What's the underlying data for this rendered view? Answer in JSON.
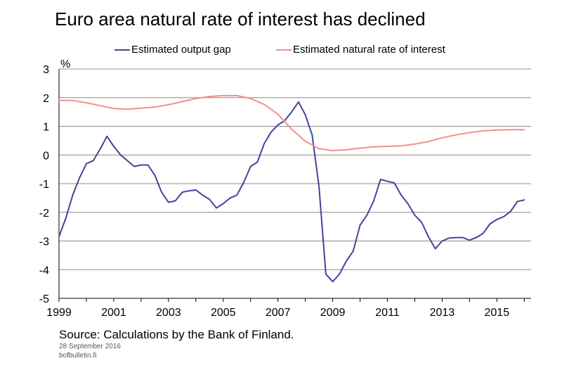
{
  "title": "Euro area natural rate of interest has declined",
  "source": "Source: Calculations by the Bank of Finland.",
  "date": "28 September 2016",
  "site": "bofbulletin.fi",
  "chart_data": {
    "type": "line",
    "ylabel": "%",
    "ylim": [
      -5,
      3
    ],
    "xlim": [
      1999,
      2016.25
    ],
    "yticks": [
      -5,
      -4,
      -3,
      -2,
      -1,
      0,
      1,
      2,
      3
    ],
    "xticks": [
      1999,
      2001,
      2003,
      2005,
      2007,
      2009,
      2011,
      2013,
      2015
    ],
    "grid": true,
    "legend_position": "top",
    "series": [
      {
        "name": "Estimated output gap",
        "color": "#3f4699",
        "points": [
          [
            1999.0,
            -2.85
          ],
          [
            1999.25,
            -2.2
          ],
          [
            1999.5,
            -1.4
          ],
          [
            1999.75,
            -0.8
          ],
          [
            2000.0,
            -0.3
          ],
          [
            2000.25,
            -0.2
          ],
          [
            2000.5,
            0.2
          ],
          [
            2000.75,
            0.65
          ],
          [
            2001.0,
            0.3
          ],
          [
            2001.25,
            0.0
          ],
          [
            2001.5,
            -0.2
          ],
          [
            2001.75,
            -0.4
          ],
          [
            2002.0,
            -0.35
          ],
          [
            2002.25,
            -0.35
          ],
          [
            2002.5,
            -0.7
          ],
          [
            2002.75,
            -1.3
          ],
          [
            2003.0,
            -1.65
          ],
          [
            2003.25,
            -1.6
          ],
          [
            2003.5,
            -1.3
          ],
          [
            2003.75,
            -1.25
          ],
          [
            2004.0,
            -1.22
          ],
          [
            2004.25,
            -1.4
          ],
          [
            2004.5,
            -1.55
          ],
          [
            2004.75,
            -1.85
          ],
          [
            2005.0,
            -1.7
          ],
          [
            2005.25,
            -1.5
          ],
          [
            2005.5,
            -1.4
          ],
          [
            2005.75,
            -0.95
          ],
          [
            2006.0,
            -0.4
          ],
          [
            2006.25,
            -0.25
          ],
          [
            2006.5,
            0.4
          ],
          [
            2006.75,
            0.8
          ],
          [
            2007.0,
            1.05
          ],
          [
            2007.25,
            1.2
          ],
          [
            2007.5,
            1.5
          ],
          [
            2007.75,
            1.85
          ],
          [
            2008.0,
            1.4
          ],
          [
            2008.25,
            0.7
          ],
          [
            2008.5,
            -1.1
          ],
          [
            2008.75,
            -4.15
          ],
          [
            2009.0,
            -4.42
          ],
          [
            2009.25,
            -4.15
          ],
          [
            2009.5,
            -3.7
          ],
          [
            2009.75,
            -3.35
          ],
          [
            2010.0,
            -2.45
          ],
          [
            2010.25,
            -2.1
          ],
          [
            2010.5,
            -1.6
          ],
          [
            2010.75,
            -0.85
          ],
          [
            2011.0,
            -0.92
          ],
          [
            2011.25,
            -0.97
          ],
          [
            2011.5,
            -1.4
          ],
          [
            2011.75,
            -1.7
          ],
          [
            2012.0,
            -2.1
          ],
          [
            2012.25,
            -2.35
          ],
          [
            2012.5,
            -2.85
          ],
          [
            2012.75,
            -3.27
          ],
          [
            2013.0,
            -3.0
          ],
          [
            2013.25,
            -2.9
          ],
          [
            2013.5,
            -2.88
          ],
          [
            2013.75,
            -2.88
          ],
          [
            2014.0,
            -2.97
          ],
          [
            2014.25,
            -2.88
          ],
          [
            2014.5,
            -2.73
          ],
          [
            2014.75,
            -2.4
          ],
          [
            2015.0,
            -2.25
          ],
          [
            2015.25,
            -2.15
          ],
          [
            2015.5,
            -1.97
          ],
          [
            2015.75,
            -1.62
          ],
          [
            2016.0,
            -1.57
          ]
        ]
      },
      {
        "name": "Estimated natural rate of interest",
        "color": "#f28e8e",
        "points": [
          [
            1999.0,
            1.9
          ],
          [
            1999.5,
            1.9
          ],
          [
            2000.0,
            1.82
          ],
          [
            2000.5,
            1.72
          ],
          [
            2001.0,
            1.62
          ],
          [
            2001.5,
            1.6
          ],
          [
            2002.0,
            1.63
          ],
          [
            2002.5,
            1.67
          ],
          [
            2003.0,
            1.75
          ],
          [
            2003.5,
            1.86
          ],
          [
            2004.0,
            1.97
          ],
          [
            2004.5,
            2.04
          ],
          [
            2005.0,
            2.07
          ],
          [
            2005.5,
            2.07
          ],
          [
            2006.0,
            1.97
          ],
          [
            2006.5,
            1.76
          ],
          [
            2007.0,
            1.42
          ],
          [
            2007.5,
            0.9
          ],
          [
            2008.0,
            0.48
          ],
          [
            2008.5,
            0.22
          ],
          [
            2009.0,
            0.15
          ],
          [
            2009.5,
            0.18
          ],
          [
            2010.0,
            0.24
          ],
          [
            2010.5,
            0.28
          ],
          [
            2011.0,
            0.3
          ],
          [
            2011.5,
            0.32
          ],
          [
            2012.0,
            0.38
          ],
          [
            2012.5,
            0.47
          ],
          [
            2013.0,
            0.6
          ],
          [
            2013.5,
            0.7
          ],
          [
            2014.0,
            0.78
          ],
          [
            2014.5,
            0.84
          ],
          [
            2015.0,
            0.87
          ],
          [
            2015.5,
            0.88
          ],
          [
            2016.0,
            0.88
          ]
        ]
      }
    ]
  }
}
